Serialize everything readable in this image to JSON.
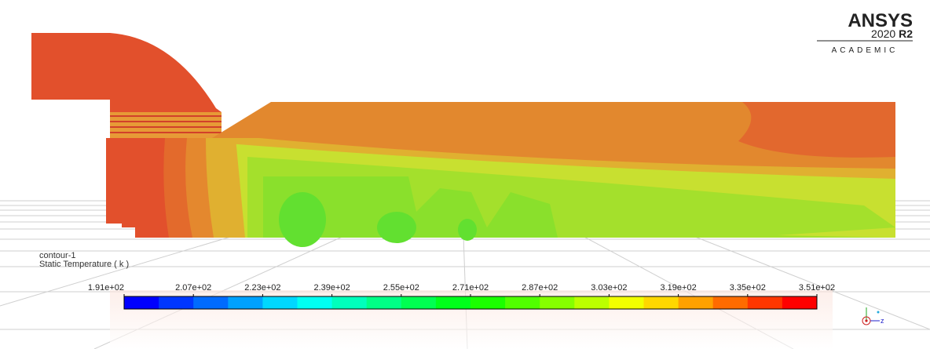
{
  "logo": {
    "brand": "ANSYS",
    "version": "2020",
    "release": "R2",
    "edition": "ACADEMIC"
  },
  "legend": {
    "name": "contour-1",
    "quantity": "Static Temperature ( k )",
    "labels": [
      "1.91e+02",
      "2.07e+02",
      "2.23e+02",
      "2.39e+02",
      "2.55e+02",
      "2.71e+02",
      "2.87e+02",
      "3.03e+02",
      "3.19e+02",
      "3.35e+02",
      "3.51e+02"
    ]
  },
  "triad": {
    "axis": "z"
  }
}
